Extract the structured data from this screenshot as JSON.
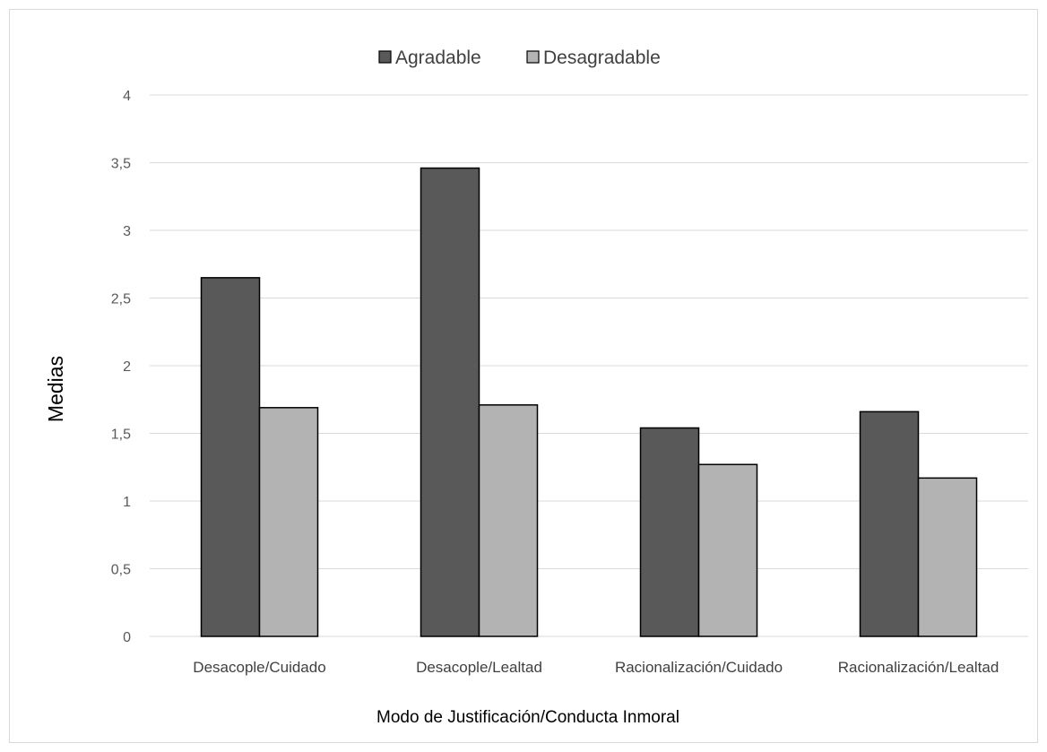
{
  "chart_data": {
    "type": "bar",
    "title": "",
    "xlabel": "Modo de Justificación/Conducta Inmoral",
    "ylabel": "Medias",
    "ylim": [
      0,
      4
    ],
    "yticks": [
      0,
      0.5,
      1,
      1.5,
      2,
      2.5,
      3,
      3.5,
      4
    ],
    "ytick_labels": [
      "0",
      "0,5",
      "1",
      "1,5",
      "2",
      "2,5",
      "3",
      "3,5",
      "4"
    ],
    "grid": true,
    "legend_position": "top-center",
    "categories": [
      "Desacople/Cuidado",
      "Desacople/Lealtad",
      "Racionalización/Cuidado",
      "Racionalización/Lealtad"
    ],
    "series": [
      {
        "name": "Agradable",
        "color": "#595959",
        "values": [
          2.65,
          3.46,
          1.54,
          1.66
        ]
      },
      {
        "name": "Desagradable",
        "color": "#b3b3b3",
        "values": [
          1.69,
          1.71,
          1.27,
          1.17
        ]
      }
    ]
  }
}
